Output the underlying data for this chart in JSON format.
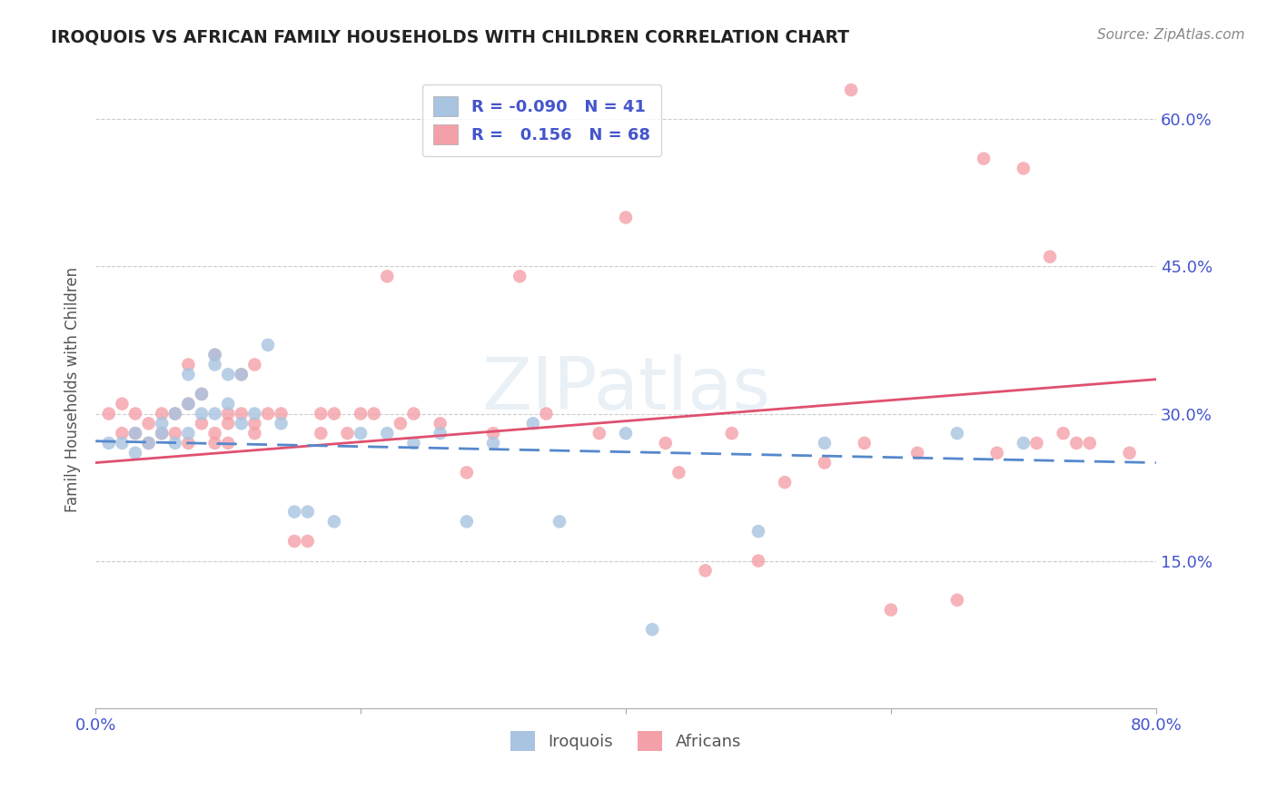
{
  "title": "IROQUOIS VS AFRICAN FAMILY HOUSEHOLDS WITH CHILDREN CORRELATION CHART",
  "source": "Source: ZipAtlas.com",
  "ylabel": "Family Households with Children",
  "xlabel": "",
  "xlim": [
    0.0,
    0.8
  ],
  "ylim": [
    0.0,
    0.65
  ],
  "xticks": [
    0.0,
    0.2,
    0.4,
    0.6,
    0.8
  ],
  "xticklabels": [
    "0.0%",
    "",
    "",
    "",
    "80.0%"
  ],
  "ytick_positions": [
    0.15,
    0.3,
    0.45,
    0.6
  ],
  "right_ytick_labels": [
    "15.0%",
    "30.0%",
    "45.0%",
    "60.0%"
  ],
  "legend_R_iroquois": "-0.090",
  "legend_N_iroquois": "41",
  "legend_R_africans": "0.156",
  "legend_N_africans": "68",
  "iroquois_color": "#a8c4e0",
  "africans_color": "#f4a0a8",
  "iroquois_line_color": "#5588cc",
  "africans_line_color": "#e05070",
  "legend_text_color": "#4455cc",
  "watermark": "ZIPatlas",
  "iroquois_line_x0": 0.0,
  "iroquois_line_x1": 0.8,
  "iroquois_line_y0": 0.272,
  "iroquois_line_y1": 0.25,
  "africans_line_x0": 0.0,
  "africans_line_x1": 0.8,
  "africans_line_y0": 0.25,
  "africans_line_y1": 0.335,
  "iroquois_x": [
    0.01,
    0.02,
    0.03,
    0.03,
    0.04,
    0.05,
    0.05,
    0.06,
    0.06,
    0.07,
    0.07,
    0.07,
    0.08,
    0.08,
    0.09,
    0.09,
    0.09,
    0.1,
    0.1,
    0.11,
    0.11,
    0.12,
    0.13,
    0.14,
    0.15,
    0.16,
    0.18,
    0.2,
    0.22,
    0.24,
    0.26,
    0.28,
    0.3,
    0.33,
    0.35,
    0.4,
    0.42,
    0.5,
    0.55,
    0.65,
    0.7
  ],
  "iroquois_y": [
    0.27,
    0.27,
    0.28,
    0.26,
    0.27,
    0.29,
    0.28,
    0.3,
    0.27,
    0.31,
    0.34,
    0.28,
    0.32,
    0.3,
    0.35,
    0.36,
    0.3,
    0.34,
    0.31,
    0.34,
    0.29,
    0.3,
    0.37,
    0.29,
    0.2,
    0.2,
    0.19,
    0.28,
    0.28,
    0.27,
    0.28,
    0.19,
    0.27,
    0.29,
    0.19,
    0.28,
    0.08,
    0.18,
    0.27,
    0.28,
    0.27
  ],
  "africans_x": [
    0.01,
    0.02,
    0.02,
    0.03,
    0.03,
    0.04,
    0.04,
    0.05,
    0.05,
    0.06,
    0.06,
    0.07,
    0.07,
    0.07,
    0.08,
    0.08,
    0.09,
    0.09,
    0.09,
    0.1,
    0.1,
    0.1,
    0.11,
    0.11,
    0.12,
    0.12,
    0.12,
    0.13,
    0.14,
    0.15,
    0.16,
    0.17,
    0.17,
    0.18,
    0.19,
    0.2,
    0.21,
    0.22,
    0.23,
    0.24,
    0.26,
    0.28,
    0.3,
    0.32,
    0.34,
    0.38,
    0.4,
    0.43,
    0.44,
    0.46,
    0.48,
    0.5,
    0.52,
    0.55,
    0.57,
    0.58,
    0.6,
    0.62,
    0.65,
    0.67,
    0.68,
    0.7,
    0.71,
    0.72,
    0.73,
    0.74,
    0.75,
    0.78
  ],
  "africans_y": [
    0.3,
    0.28,
    0.31,
    0.28,
    0.3,
    0.27,
    0.29,
    0.28,
    0.3,
    0.28,
    0.3,
    0.35,
    0.31,
    0.27,
    0.32,
    0.29,
    0.36,
    0.28,
    0.27,
    0.3,
    0.29,
    0.27,
    0.34,
    0.3,
    0.35,
    0.29,
    0.28,
    0.3,
    0.3,
    0.17,
    0.17,
    0.28,
    0.3,
    0.3,
    0.28,
    0.3,
    0.3,
    0.44,
    0.29,
    0.3,
    0.29,
    0.24,
    0.28,
    0.44,
    0.3,
    0.28,
    0.5,
    0.27,
    0.24,
    0.14,
    0.28,
    0.15,
    0.23,
    0.25,
    0.63,
    0.27,
    0.1,
    0.26,
    0.11,
    0.56,
    0.26,
    0.55,
    0.27,
    0.46,
    0.28,
    0.27,
    0.27,
    0.26
  ]
}
